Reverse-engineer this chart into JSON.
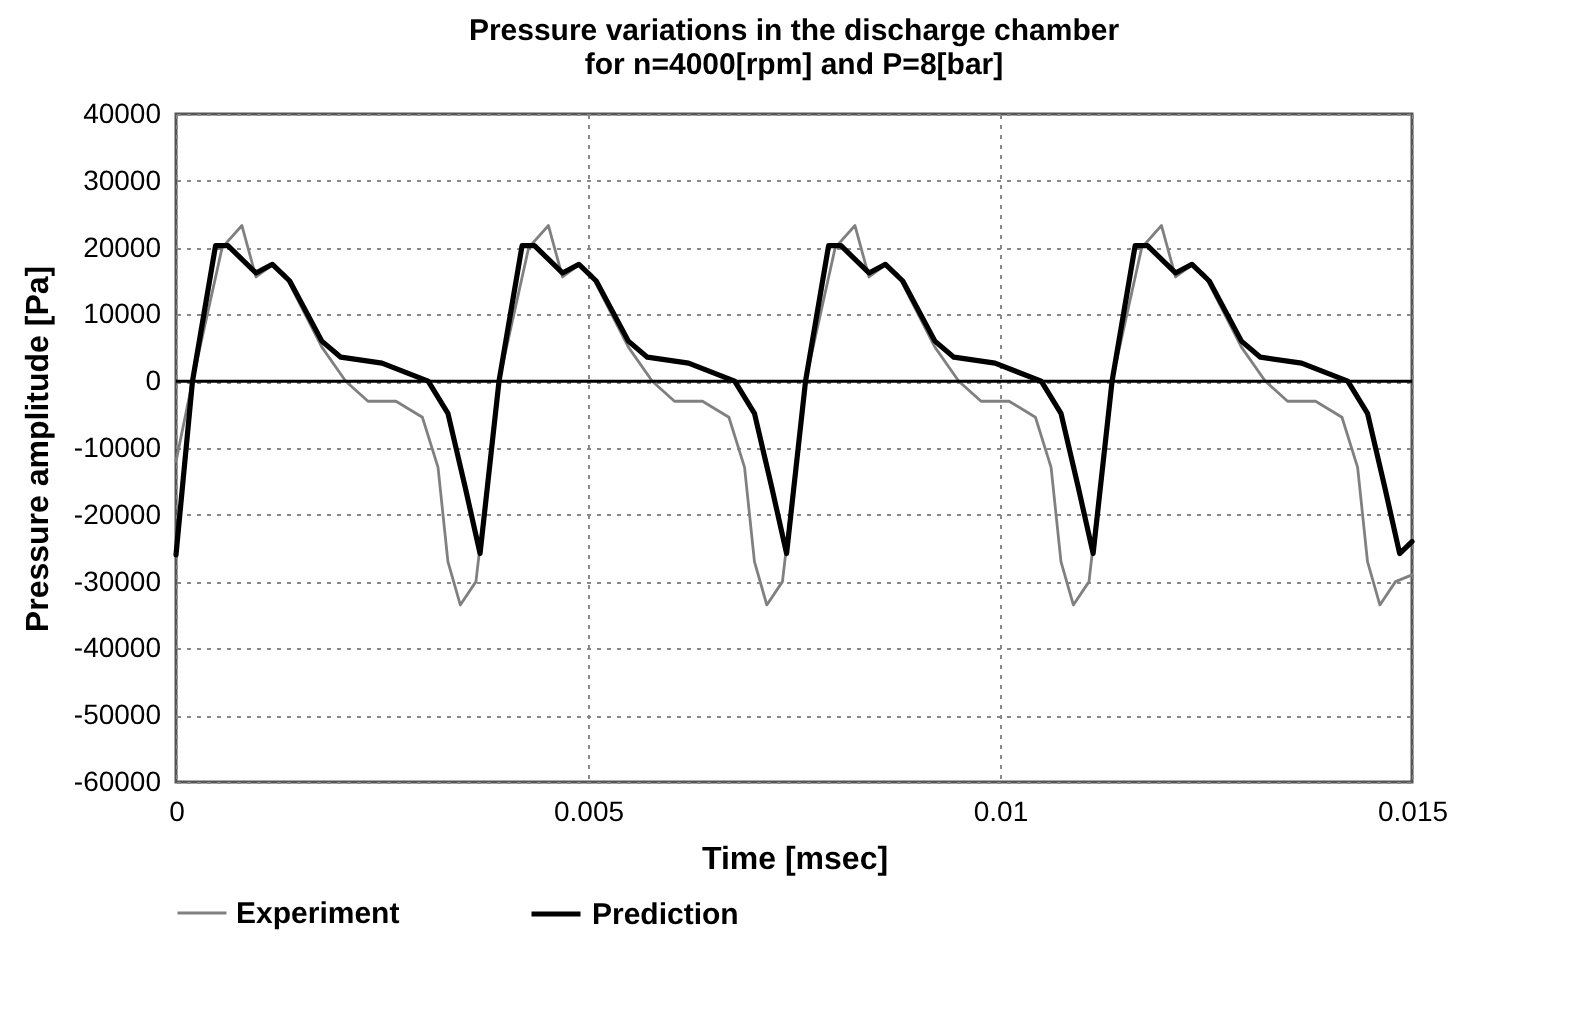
{
  "chart_data": {
    "type": "line",
    "title": "Pressure variations in the discharge chamber\nfor n=4000[rpm] and P=8[bar]",
    "xlabel": "Time [msec]",
    "ylabel": "Pressure amplitude [Pa]",
    "xlim": [
      0,
      0.015
    ],
    "xticks": [
      0,
      0.005,
      0.01,
      0.015
    ],
    "ylim": [
      -60000,
      40000
    ],
    "yticks": [
      -60000,
      -50000,
      -40000,
      -30000,
      -20000,
      -10000,
      0,
      10000,
      20000,
      30000,
      40000
    ],
    "grid": true,
    "legend": "bottom",
    "line_style": "solid",
    "marker": "none",
    "ref_lines": [
      {
        "axis": "y",
        "value": 0,
        "color": "#000000",
        "line_style": "solid"
      }
    ],
    "series": [
      {
        "name": "Experiment",
        "color": "#808080",
        "x": [
          0,
          0.0002,
          0.00056,
          0.0008,
          0.00097,
          0.00117,
          0.00132,
          0.00177,
          0.00206,
          0.00233,
          0.00267,
          0.00299,
          0.00318,
          0.0033,
          0.00345,
          0.00364,
          0.00392,
          0.00428,
          0.00452,
          0.00469,
          0.00489,
          0.00504,
          0.00549,
          0.00578,
          0.00605,
          0.00639,
          0.00671,
          0.0069,
          0.00702,
          0.00717,
          0.00736,
          0.00764,
          0.008,
          0.00824,
          0.00841,
          0.00861,
          0.00876,
          0.00921,
          0.0095,
          0.00977,
          0.01011,
          0.01043,
          0.01062,
          0.01074,
          0.01089,
          0.01108,
          0.01136,
          0.01172,
          0.01196,
          0.01213,
          0.01233,
          0.01248,
          0.01293,
          0.01322,
          0.01349,
          0.01383,
          0.01415,
          0.01434,
          0.01446,
          0.01461,
          0.0148,
          0.015
        ],
        "values": [
          -12000,
          0,
          20000,
          23300,
          15600,
          17400,
          16000,
          5100,
          0,
          -3000,
          -3000,
          -5400,
          -12900,
          -27000,
          -33500,
          -30000,
          0,
          20000,
          23300,
          15600,
          17400,
          16000,
          5100,
          0,
          -3000,
          -3000,
          -5400,
          -12900,
          -27000,
          -33500,
          -30000,
          0,
          20000,
          23300,
          15600,
          17400,
          16000,
          5100,
          0,
          -3000,
          -3000,
          -5400,
          -12900,
          -27000,
          -33500,
          -30000,
          0,
          20000,
          23300,
          15600,
          17400,
          16000,
          5100,
          0,
          -3000,
          -3000,
          -5400,
          -12900,
          -27000,
          -33500,
          -30000,
          -29000
        ]
      },
      {
        "name": "Prediction",
        "color": "#000000",
        "x": [
          0,
          0.0002,
          0.00048,
          0.00063,
          0.00097,
          0.00117,
          0.00138,
          0.00177,
          0.002,
          0.0025,
          0.00306,
          0.0033,
          0.00351,
          0.00369,
          0.00392,
          0.0042,
          0.00435,
          0.00469,
          0.00489,
          0.0051,
          0.00549,
          0.00572,
          0.00622,
          0.00678,
          0.00702,
          0.00723,
          0.00741,
          0.00764,
          0.00792,
          0.00807,
          0.00841,
          0.00861,
          0.00882,
          0.00921,
          0.00944,
          0.00994,
          0.0105,
          0.01074,
          0.01095,
          0.01113,
          0.01136,
          0.01164,
          0.01179,
          0.01213,
          0.01233,
          0.01254,
          0.01293,
          0.01316,
          0.01366,
          0.01422,
          0.01446,
          0.01467,
          0.01485,
          0.015
        ],
        "values": [
          -26000,
          0,
          20300,
          20300,
          16200,
          17500,
          15000,
          6000,
          3600,
          2700,
          0,
          -4800,
          -15900,
          -25800,
          0,
          20300,
          20300,
          16200,
          17500,
          15000,
          6000,
          3600,
          2700,
          0,
          -4800,
          -15900,
          -25800,
          0,
          20300,
          20300,
          16200,
          17500,
          15000,
          6000,
          3600,
          2700,
          0,
          -4800,
          -15900,
          -25800,
          0,
          20300,
          20300,
          16200,
          17500,
          15000,
          6000,
          3600,
          2700,
          0,
          -4800,
          -15900,
          -25800,
          -24000
        ]
      }
    ]
  }
}
